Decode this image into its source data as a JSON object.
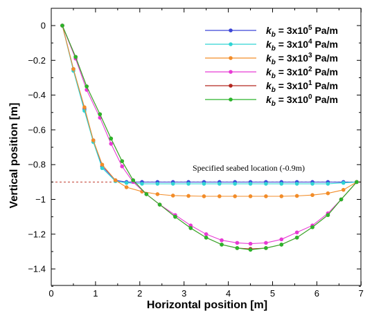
{
  "chart_data": {
    "type": "line",
    "xlabel": "Horizontal position [m]",
    "ylabel": "Vertical position [m]",
    "xlim": [
      0,
      7
    ],
    "ylim": [
      -1.5,
      0.05
    ],
    "xticks": [
      "0",
      "1",
      "2",
      "3",
      "4",
      "5",
      "6",
      "7"
    ],
    "yticks": [
      "0",
      "−0.2",
      "−0.4",
      "−0.6",
      "−0.8",
      "−1",
      "−1.2",
      "−1.4"
    ],
    "ytick_values": [
      0,
      -0.2,
      -0.4,
      -0.6,
      -0.8,
      -1.0,
      -1.2,
      -1.4
    ],
    "grid": false,
    "legend_position": "top-right",
    "annotation": {
      "text": "Specified seabed location (-0.9m)",
      "y": -0.9,
      "color": "#c0392b"
    },
    "series": [
      {
        "name_prefix": "k",
        "name_sub": "b",
        "name_eq": " = 3x10",
        "name_sup": "5",
        "name_unit": " Pa/m",
        "color": "#3b45d6",
        "x": [
          0.25,
          0.5,
          0.75,
          0.95,
          1.15,
          1.45,
          1.7,
          2.05,
          2.4,
          2.75,
          3.1,
          3.45,
          3.8,
          4.15,
          4.5,
          4.85,
          5.2,
          5.55,
          5.9,
          6.25,
          6.6,
          6.9
        ],
        "y": [
          0,
          -0.25,
          -0.48,
          -0.66,
          -0.81,
          -0.89,
          -0.9,
          -0.9,
          -0.9,
          -0.9,
          -0.9,
          -0.9,
          -0.9,
          -0.9,
          -0.9,
          -0.9,
          -0.9,
          -0.9,
          -0.9,
          -0.9,
          -0.9,
          -0.9
        ]
      },
      {
        "name_prefix": "k",
        "name_sub": "b",
        "name_eq": " = 3x10",
        "name_sup": "4",
        "name_unit": " Pa/m",
        "color": "#2fd4d4",
        "x": [
          0.25,
          0.5,
          0.75,
          0.95,
          1.15,
          1.45,
          1.7,
          2.05,
          2.4,
          2.75,
          3.1,
          3.45,
          3.8,
          4.15,
          4.5,
          4.85,
          5.2,
          5.55,
          5.9,
          6.25,
          6.6,
          6.9
        ],
        "y": [
          0,
          -0.26,
          -0.49,
          -0.67,
          -0.82,
          -0.895,
          -0.905,
          -0.91,
          -0.91,
          -0.91,
          -0.91,
          -0.91,
          -0.91,
          -0.91,
          -0.91,
          -0.91,
          -0.91,
          -0.91,
          -0.91,
          -0.91,
          -0.905,
          -0.9
        ]
      },
      {
        "name_prefix": "k",
        "name_sub": "b",
        "name_eq": " = 3x10",
        "name_sup": "3",
        "name_unit": " Pa/m",
        "color": "#f28c28",
        "x": [
          0.25,
          0.5,
          0.75,
          0.95,
          1.15,
          1.45,
          1.7,
          2.05,
          2.4,
          2.75,
          3.1,
          3.45,
          3.8,
          4.15,
          4.5,
          4.85,
          5.2,
          5.55,
          5.9,
          6.25,
          6.6,
          6.9
        ],
        "y": [
          0,
          -0.25,
          -0.47,
          -0.66,
          -0.8,
          -0.89,
          -0.93,
          -0.955,
          -0.97,
          -0.978,
          -0.98,
          -0.982,
          -0.982,
          -0.982,
          -0.982,
          -0.982,
          -0.982,
          -0.98,
          -0.975,
          -0.965,
          -0.945,
          -0.9
        ]
      },
      {
        "name_prefix": "k",
        "name_sub": "b",
        "name_eq": " = 3x10",
        "name_sup": "2",
        "name_unit": " Pa/m",
        "color": "#e83ad4",
        "x": [
          0.25,
          0.55,
          0.8,
          1.1,
          1.35,
          1.6,
          1.85,
          2.15,
          2.45,
          2.8,
          3.15,
          3.5,
          3.85,
          4.2,
          4.5,
          4.85,
          5.2,
          5.55,
          5.9,
          6.25,
          6.55,
          6.9
        ],
        "y": [
          0,
          -0.19,
          -0.37,
          -0.53,
          -0.68,
          -0.81,
          -0.9,
          -0.97,
          -1.03,
          -1.09,
          -1.15,
          -1.2,
          -1.235,
          -1.25,
          -1.255,
          -1.25,
          -1.23,
          -1.19,
          -1.15,
          -1.08,
          -1.0,
          -0.9
        ]
      },
      {
        "name_prefix": "k",
        "name_sub": "b",
        "name_eq": " = 3x10",
        "name_sup": "1",
        "name_unit": " Pa/m",
        "color": "#b3261e",
        "x": [
          0.25,
          0.55,
          0.8,
          1.1,
          1.35,
          1.6,
          1.85,
          2.15,
          2.45,
          2.8,
          3.15,
          3.5,
          3.85,
          4.2,
          4.5,
          4.85,
          5.2,
          5.55,
          5.9,
          6.25,
          6.55,
          6.9
        ],
        "y": [
          0,
          -0.18,
          -0.35,
          -0.51,
          -0.65,
          -0.78,
          -0.89,
          -0.97,
          -1.03,
          -1.1,
          -1.165,
          -1.22,
          -1.26,
          -1.28,
          -1.285,
          -1.28,
          -1.26,
          -1.22,
          -1.16,
          -1.09,
          -1.0,
          -0.9
        ]
      },
      {
        "name_prefix": "k",
        "name_sub": "b",
        "name_eq": " = 3x10",
        "name_sup": "0",
        "name_unit": " Pa/m",
        "color": "#2bb52b",
        "x": [
          0.25,
          0.55,
          0.8,
          1.1,
          1.35,
          1.6,
          1.85,
          2.15,
          2.45,
          2.8,
          3.15,
          3.5,
          3.85,
          4.2,
          4.5,
          4.85,
          5.2,
          5.55,
          5.9,
          6.25,
          6.55,
          6.9
        ],
        "y": [
          0,
          -0.18,
          -0.35,
          -0.51,
          -0.65,
          -0.78,
          -0.89,
          -0.97,
          -1.03,
          -1.1,
          -1.165,
          -1.22,
          -1.26,
          -1.28,
          -1.29,
          -1.28,
          -1.26,
          -1.22,
          -1.16,
          -1.09,
          -1.0,
          -0.9
        ]
      }
    ]
  }
}
